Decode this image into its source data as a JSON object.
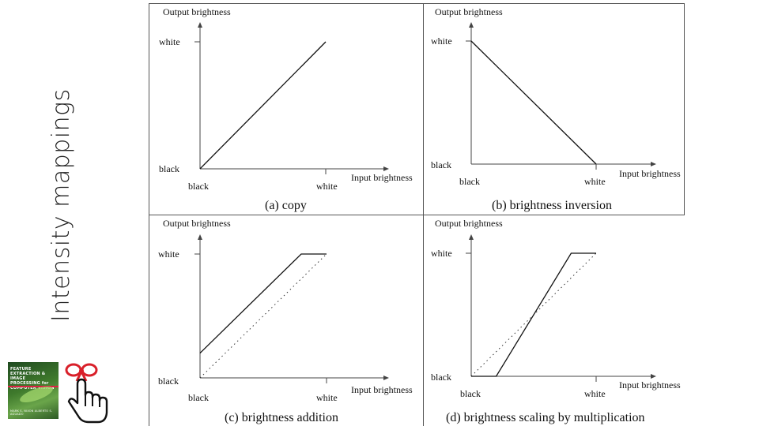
{
  "slide": {
    "title": "Intensity mappings"
  },
  "book_cover": {
    "title": "FEATURE EXTRACTION & IMAGE PROCESSING for COMPUTER VISION",
    "authors": "MARK S. NIXON ALBERTO S. AGUADO"
  },
  "panels": [
    {
      "id": "a",
      "caption_label": "(a)",
      "caption_text": "copy",
      "y_axis_label": "Output brightness",
      "x_axis_label": "Input brightness",
      "y_tick_high": "white",
      "y_tick_low": "black",
      "x_tick_low": "black",
      "x_tick_high": "white",
      "mapping": [
        [
          0,
          0
        ],
        [
          1,
          1
        ]
      ],
      "reference": null
    },
    {
      "id": "b",
      "caption_label": "(b)",
      "caption_text": "brightness inversion",
      "y_axis_label": "Output brightness",
      "x_axis_label": "Input brightness",
      "y_tick_high": "white",
      "y_tick_low": "black",
      "x_tick_low": "black",
      "x_tick_high": "white",
      "mapping": [
        [
          0,
          1
        ],
        [
          1,
          0
        ]
      ],
      "reference": null
    },
    {
      "id": "c",
      "caption_label": "(c)",
      "caption_text": "brightness addition",
      "y_axis_label": "Output brightness",
      "x_axis_label": "Input brightness",
      "y_tick_high": "white",
      "y_tick_low": "black",
      "x_tick_low": "black",
      "x_tick_high": "white",
      "mapping": [
        [
          0,
          0.2
        ],
        [
          0.8,
          1
        ],
        [
          1,
          1
        ]
      ],
      "reference": [
        [
          0,
          0
        ],
        [
          1,
          1
        ]
      ]
    },
    {
      "id": "d",
      "caption_label": "(d)",
      "caption_text": "brightness scaling by multiplication",
      "y_axis_label": "Output brightness",
      "x_axis_label": "Input brightness",
      "y_tick_high": "white",
      "y_tick_low": "black",
      "x_tick_low": "black",
      "x_tick_high": "white",
      "mapping": [
        [
          0,
          0
        ],
        [
          0.2,
          0
        ],
        [
          0.8,
          1
        ],
        [
          1,
          1
        ]
      ],
      "reference": [
        [
          0,
          0
        ],
        [
          1,
          1
        ]
      ]
    }
  ]
}
